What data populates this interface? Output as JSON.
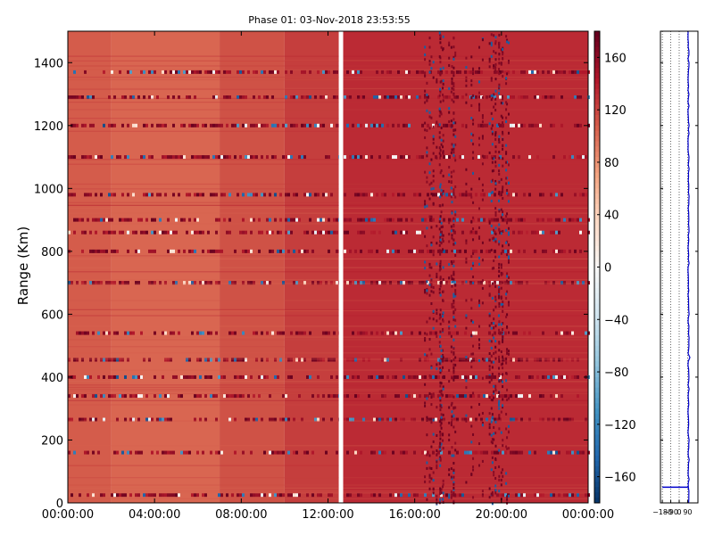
{
  "chart_data": [
    {
      "type": "heatmap",
      "title": "Phase 01: 03-Nov-2018 23:53:55",
      "ylabel": "Range (Km)",
      "xlabel": "",
      "x_ticks": [
        "00:00:00",
        "04:00:00",
        "08:00:00",
        "12:00:00",
        "16:00:00",
        "20:00:00",
        "00:00:00"
      ],
      "xlim_hours": [
        0,
        24
      ],
      "y_ticks": [
        0,
        200,
        400,
        600,
        800,
        1000,
        1200,
        1400
      ],
      "ylim": [
        0,
        1500
      ],
      "data_gap_hours": [
        12.5,
        12.7
      ],
      "background_phase": [
        {
          "hours": [
            0,
            2
          ],
          "value": 110
        },
        {
          "hours": [
            2,
            7
          ],
          "value": 105
        },
        {
          "hours": [
            7,
            10
          ],
          "value": 115
        },
        {
          "hours": [
            10,
            12.5
          ],
          "value": 125
        },
        {
          "hours": [
            12.7,
            24
          ],
          "value": 135
        }
      ],
      "noisy_range_bands_km": [
        25,
        160,
        265,
        340,
        400,
        455,
        540,
        700,
        800,
        860,
        900,
        980,
        1100,
        1200,
        1290,
        1370
      ],
      "colorbar": {
        "ticks": [
          160,
          120,
          80,
          40,
          0,
          -40,
          -80,
          -120,
          -160
        ],
        "range": [
          -180,
          180
        ],
        "colormap": "RdBu_r",
        "colors": [
          "#053061",
          "#2166ac",
          "#4393c3",
          "#92c5de",
          "#d1e5f0",
          "#f7f7f7",
          "#fddbc7",
          "#f4a582",
          "#d6604d",
          "#b2182b",
          "#67001f"
        ]
      }
    },
    {
      "type": "line",
      "series": [
        {
          "color": "#0000cc",
          "x_typical": 100,
          "step_range_km": 50,
          "step_x_min": -180
        }
      ],
      "x_ticks": [
        "-180",
        "-90",
        "0",
        "90"
      ],
      "x_tick_values": [
        -180,
        -90,
        0,
        90
      ],
      "xlim": [
        -200,
        200
      ],
      "ylim": [
        0,
        1500
      ],
      "grid": "vertical dotted",
      "line_color": "#0000cc"
    }
  ]
}
